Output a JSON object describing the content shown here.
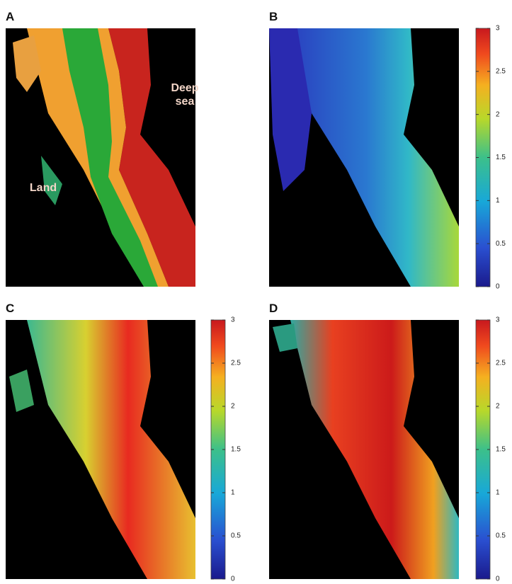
{
  "panels": [
    {
      "label": "A",
      "annotations": [
        "Deep sea",
        "Land"
      ]
    },
    {
      "label": "B",
      "colorbar": {
        "lim": [
          0,
          3
        ],
        "ticks": [
          0,
          0.5,
          1,
          1.5,
          2,
          2.5,
          3
        ]
      }
    },
    {
      "label": "C",
      "colorbar": {
        "lim": [
          0,
          3
        ],
        "ticks": [
          0,
          0.5,
          1,
          1.5,
          2,
          2.5,
          3
        ]
      }
    },
    {
      "label": "D",
      "colorbar": {
        "lim": [
          0,
          3
        ],
        "ticks": [
          0,
          0.5,
          1,
          1.5,
          2,
          2.5,
          3
        ]
      }
    }
  ]
}
